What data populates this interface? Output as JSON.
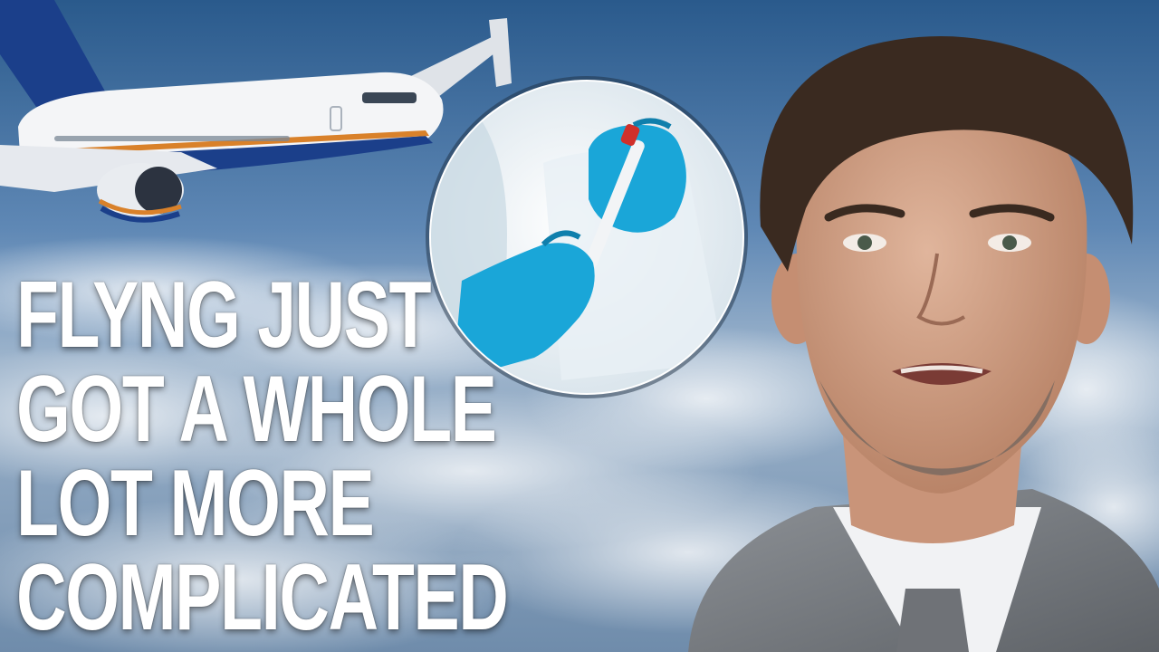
{
  "headline": {
    "line1": "FLYNG JUST",
    "line2": "GOT A WHOLE",
    "line3": "LOT MORE",
    "line4": "COMPLICATED"
  },
  "colors": {
    "sky_top": "#1f4d7f",
    "sky_mid": "#5f88b5",
    "clouds": "#dfe6ee",
    "plane_body": "#f4f5f7",
    "plane_tail": "#1b3f8a",
    "plane_stripe": "#d9812a",
    "glove": "#1aa6d8",
    "swab_cap": "#d0302a",
    "suit": "#7d8186",
    "headline_text": "#ffffff"
  },
  "scene": {
    "airplane": "airliner-image",
    "test_inset": "covid-swab-test-image",
    "person": "speaker-portrait-image"
  }
}
